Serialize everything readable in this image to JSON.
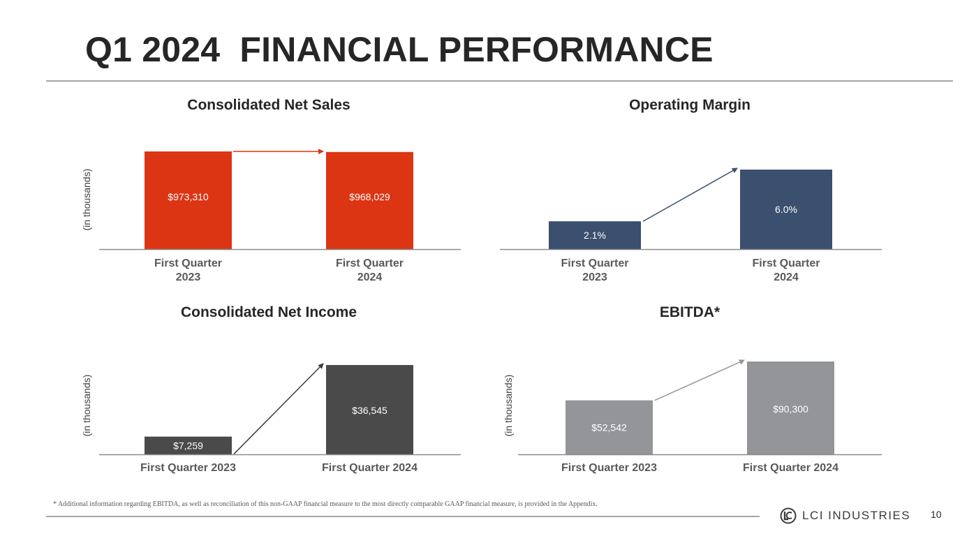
{
  "slide": {
    "title": "Q1 2024  FINANCIAL PERFORMANCE",
    "footnote": "* Additional information regarding EBITDA, as well as reconciliation of this non-GAAP financial measure to the most directly comparable GAAP financial measure, is provided in the Appendix.",
    "logo_text": "LCI INDUSTRIES",
    "page_number": "10"
  },
  "chart_data": [
    {
      "id": "net-sales",
      "type": "bar",
      "title": "Consolidated Net Sales",
      "ylabel": "(in thousands)",
      "categories": [
        "First Quarter\n2023",
        "First Quarter\n2024"
      ],
      "values": [
        973310,
        968029
      ],
      "labels": [
        "$973,310",
        "$968,029"
      ],
      "color": "#db3514",
      "arrow_color": "#db3514",
      "ylim": [
        0,
        973310
      ]
    },
    {
      "id": "operating-margin",
      "type": "bar",
      "title": "Operating Margin",
      "ylabel": "",
      "categories": [
        "First Quarter\n2023",
        "First Quarter\n2024"
      ],
      "values": [
        2.1,
        6.0
      ],
      "labels": [
        "2.1%",
        "6.0%"
      ],
      "color": "#3b4f6e",
      "arrow_color": "#3b4f6e",
      "ylim": [
        0,
        6.0
      ]
    },
    {
      "id": "net-income",
      "type": "bar",
      "title": "Consolidated Net Income",
      "ylabel": "(in thousands)",
      "categories": [
        "First Quarter 2023",
        "First Quarter 2024"
      ],
      "values": [
        7259,
        36545
      ],
      "labels": [
        "$7,259",
        "$36,545"
      ],
      "color": "#4a4a4a",
      "arrow_color": "#3a3a3a",
      "ylim": [
        0,
        36545
      ]
    },
    {
      "id": "ebitda",
      "type": "bar",
      "title": "EBITDA*",
      "ylabel": "(in thousands)",
      "categories": [
        "First Quarter 2023",
        "First Quarter 2024"
      ],
      "values": [
        52542,
        90300
      ],
      "labels": [
        "$52,542",
        "$90,300"
      ],
      "color": "#939598",
      "arrow_color": "#939598",
      "ylim": [
        0,
        90300
      ]
    }
  ]
}
